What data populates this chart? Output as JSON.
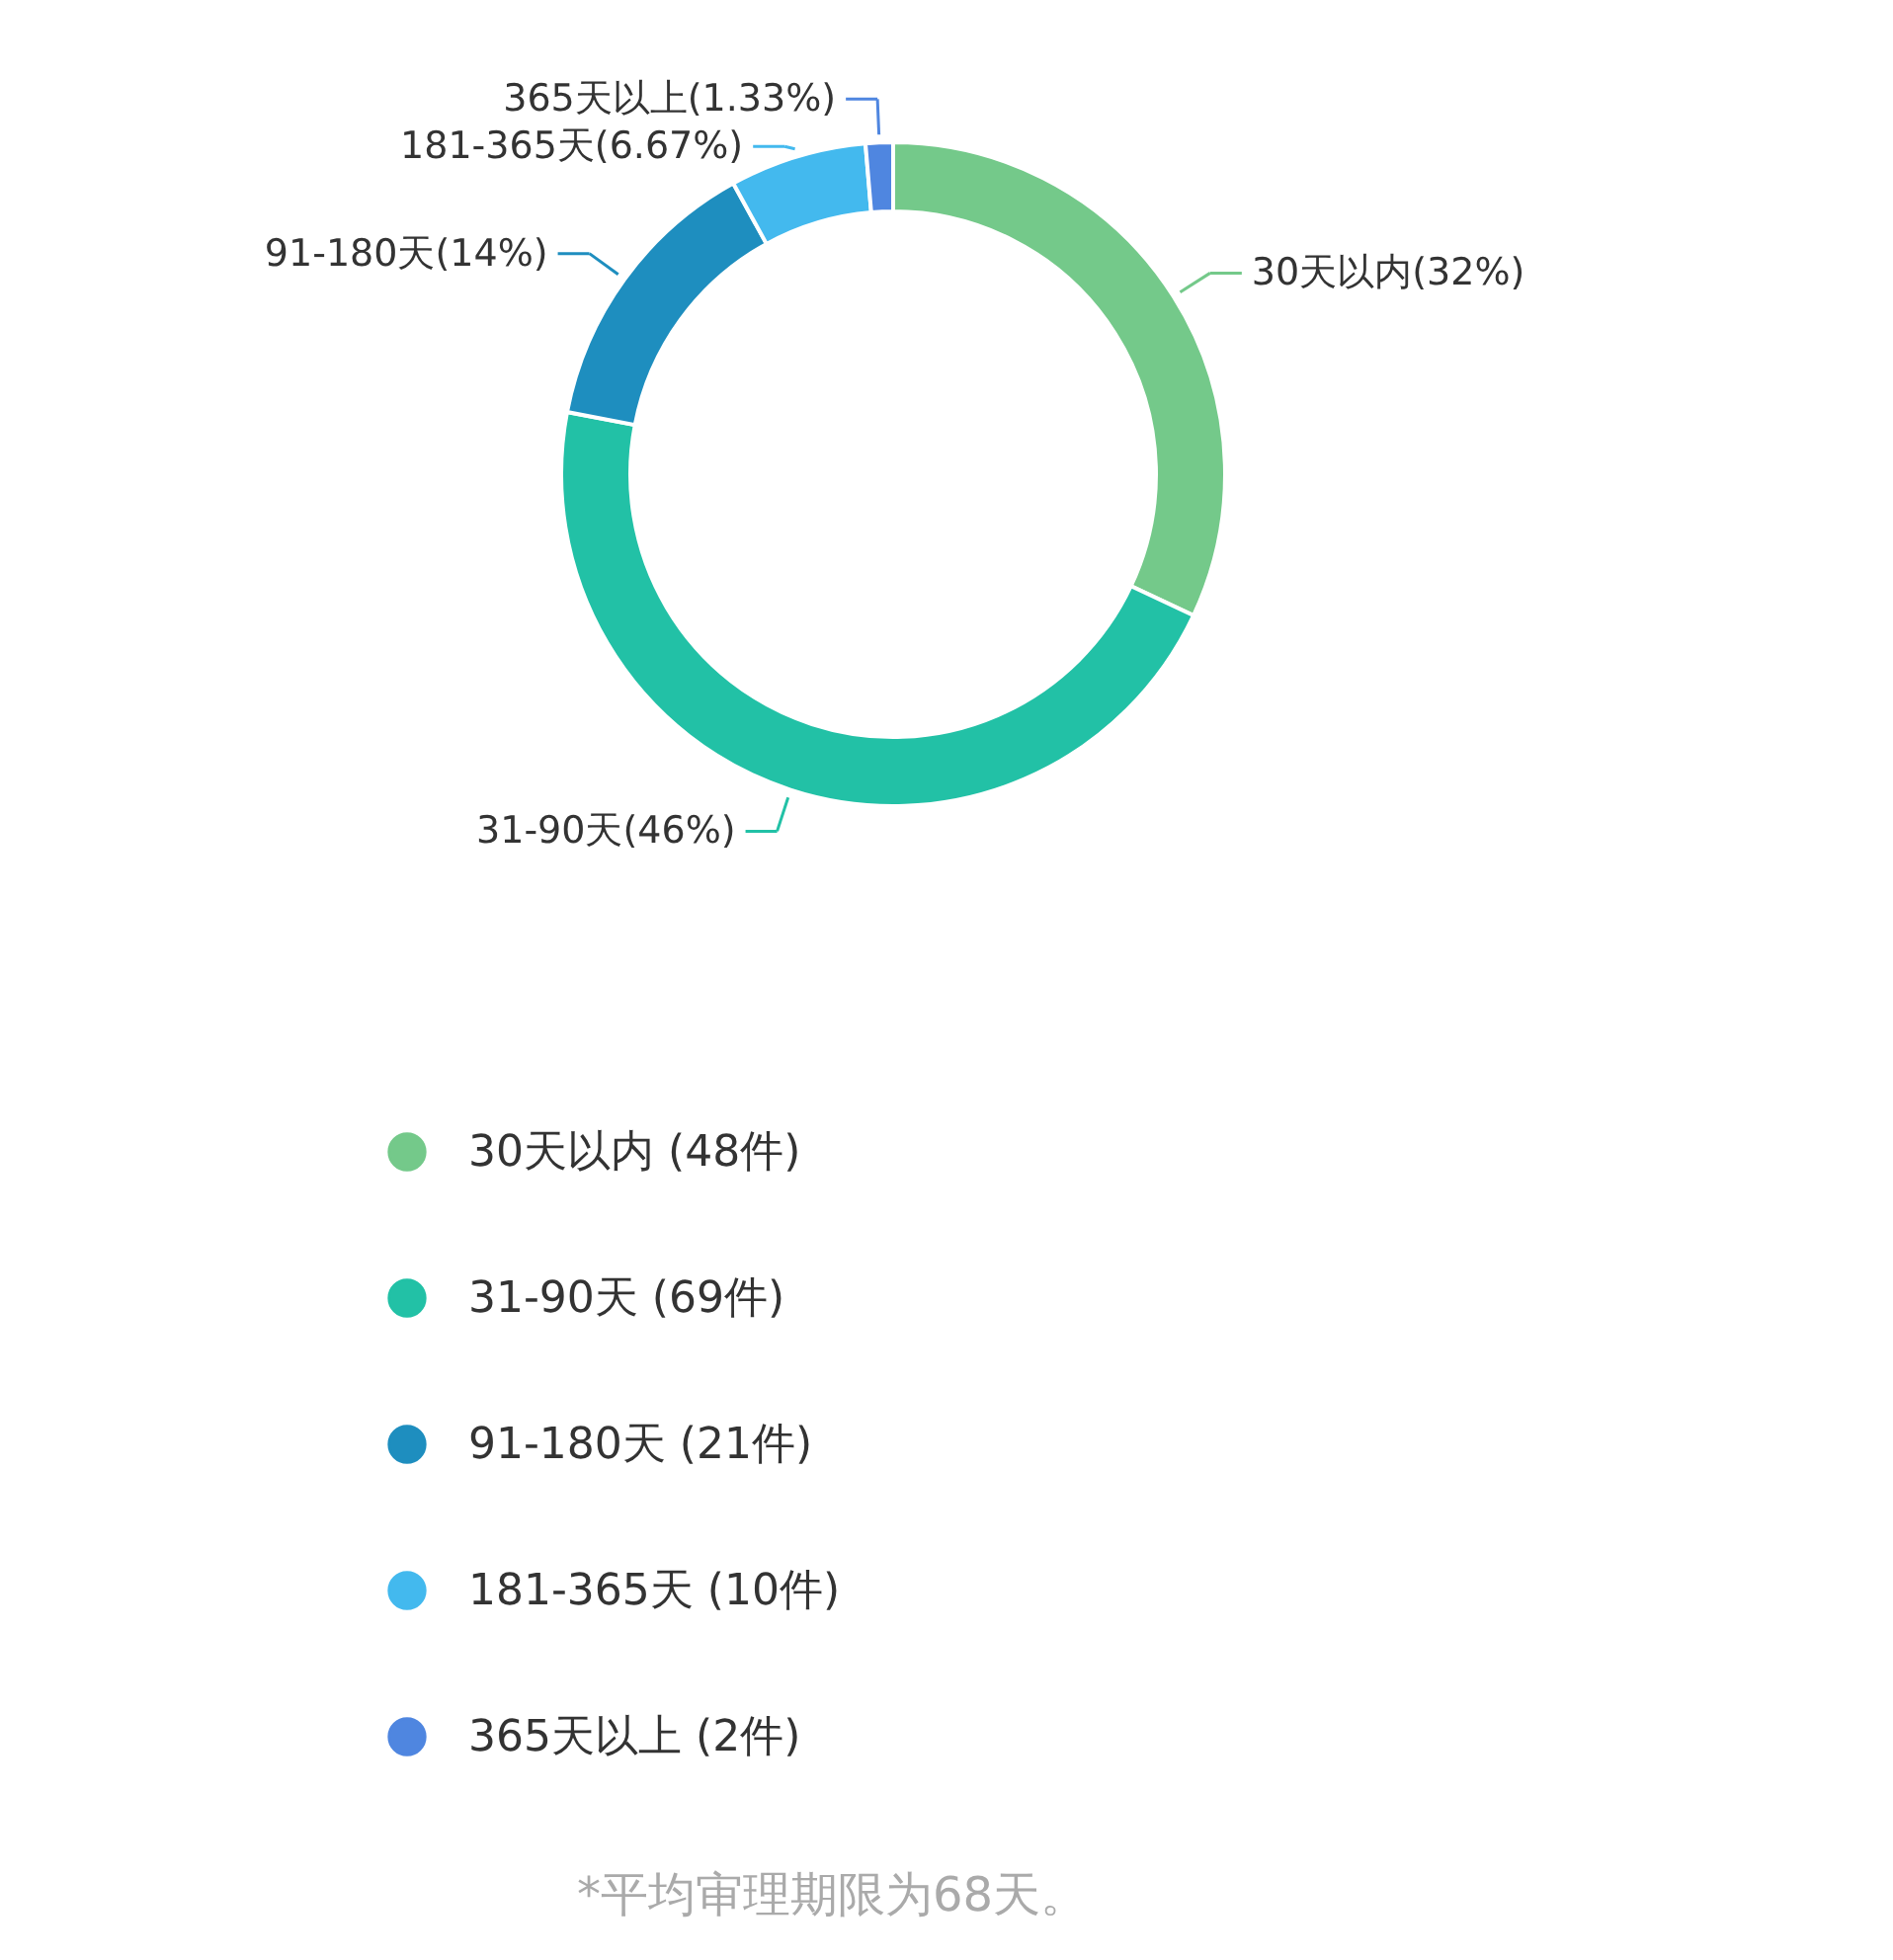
{
  "chart_data": {
    "type": "donut",
    "categories": [
      "30天以内  (48件)",
      "31-90天  (69件)",
      "91-180天  (21件)",
      "181-365天  (10件)",
      "365天以上  (2件)"
    ],
    "values": [
      32,
      46,
      14,
      6.67,
      1.33
    ],
    "colors": [
      "#74c98a",
      "#22c1a6",
      "#1e8ebf",
      "#43b9ee",
      "#4f86e0"
    ],
    "value_labels": [
      "30天以内(32%)",
      "31-90天(46%)",
      "91-180天(14%)",
      "181-365天(6.67%)",
      "365天以上(1.33%)"
    ],
    "legend": "bottom",
    "annotations": [
      "*平均审理期限为68天。"
    ]
  }
}
